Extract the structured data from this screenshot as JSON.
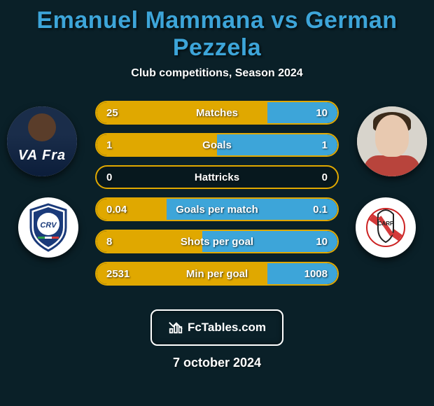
{
  "title": "Emanuel Mammana vs German Pezzela",
  "subtitle": "Club competitions, Season 2024",
  "title_color": "#3da5d9",
  "left_bar_color": "#e0a800",
  "right_bar_color": "#3da5d9",
  "border_color": "#e0a800",
  "stats": [
    {
      "label": "Matches",
      "left_val": "25",
      "right_val": "10",
      "left_pct": 71,
      "right_pct": 29
    },
    {
      "label": "Goals",
      "left_val": "1",
      "right_val": "1",
      "left_pct": 50,
      "right_pct": 50
    },
    {
      "label": "Hattricks",
      "left_val": "0",
      "right_val": "0",
      "left_pct": 0,
      "right_pct": 0
    },
    {
      "label": "Goals per match",
      "left_val": "0.04",
      "right_val": "0.1",
      "left_pct": 29,
      "right_pct": 71
    },
    {
      "label": "Shots per goal",
      "left_val": "8",
      "right_val": "10",
      "left_pct": 44,
      "right_pct": 56
    },
    {
      "label": "Min per goal",
      "left_val": "2531",
      "right_val": "1008",
      "left_pct": 71,
      "right_pct": 29
    }
  ],
  "footer_brand": "FcTables.com",
  "footer_date": "7 october 2024"
}
